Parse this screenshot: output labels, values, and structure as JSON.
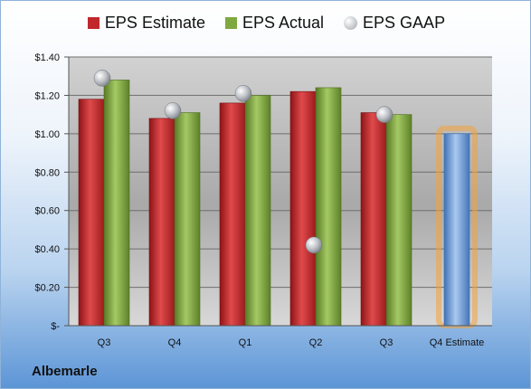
{
  "company": "Albemarle",
  "chart_data": {
    "type": "bar",
    "categories": [
      "Q3",
      "Q4",
      "Q1",
      "Q2",
      "Q3",
      "Q4 Estimate"
    ],
    "series": [
      {
        "name": "EPS Estimate",
        "color": "#c0282b",
        "values": [
          1.18,
          1.08,
          1.16,
          1.22,
          1.11,
          null
        ]
      },
      {
        "name": "EPS Actual",
        "color": "#7fa83f",
        "values": [
          1.28,
          1.11,
          1.2,
          1.24,
          1.1,
          null
        ]
      },
      {
        "name": "EPS GAAP",
        "color": "#b5b8bd",
        "values": [
          1.29,
          1.12,
          1.21,
          0.42,
          1.1,
          null
        ]
      }
    ],
    "estimate": {
      "category": "Q4 Estimate",
      "value": 1.0,
      "color": "#6f9fd8"
    },
    "ylim": [
      0,
      1.4
    ],
    "yticks": [
      {
        "value": 0,
        "label": "$-"
      },
      {
        "value": 0.2,
        "label": "$0.20"
      },
      {
        "value": 0.4,
        "label": "$0.40"
      },
      {
        "value": 0.6,
        "label": "$0.60"
      },
      {
        "value": 0.8,
        "label": "$0.80"
      },
      {
        "value": 1.0,
        "label": "$1.00"
      },
      {
        "value": 1.2,
        "label": "$1.20"
      },
      {
        "value": 1.4,
        "label": "$1.40"
      }
    ],
    "grid": true,
    "legend_position": "top-center"
  }
}
